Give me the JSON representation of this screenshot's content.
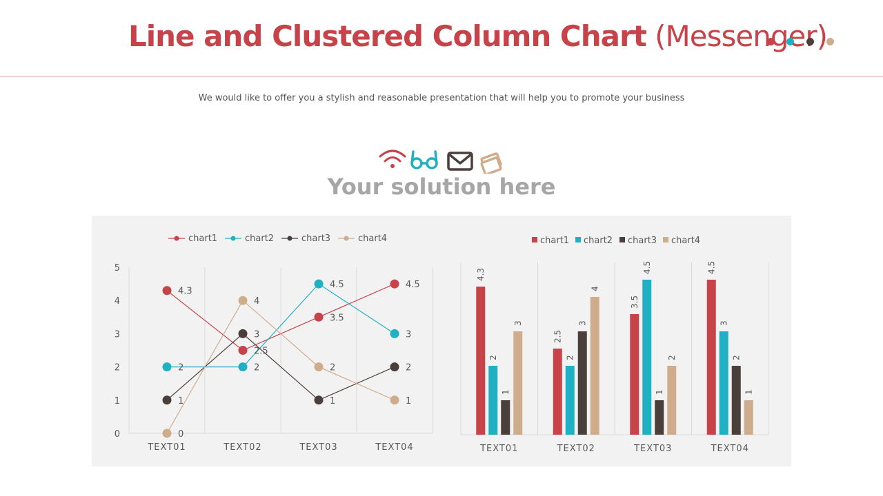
{
  "header": {
    "title_bold": "Line and Clustered Column Chart",
    "title_light": "(Messenger)",
    "dot_colors": [
      "#c8424a",
      "#1fb0c4",
      "#4a3f3a",
      "#cfac8c"
    ]
  },
  "subtitle": "We would like to offer you a stylish and reasonable presentation that will help you to promote your business",
  "icons": [
    "wifi-icon",
    "glasses-icon",
    "mail-icon",
    "cards-icon"
  ],
  "heading": "Your solution here",
  "colors": {
    "chart1": "#c8424a",
    "chart2": "#1fb0c4",
    "chart3": "#4a3f3a",
    "chart4": "#cfac8c"
  },
  "chart_data": [
    {
      "type": "line",
      "categories": [
        "TEXT01",
        "TEXT02",
        "TEXT03",
        "TEXT04"
      ],
      "series": [
        {
          "name": "chart1",
          "values": [
            4.3,
            2.5,
            3.5,
            4.5
          ]
        },
        {
          "name": "chart2",
          "values": [
            2,
            2,
            4.5,
            3
          ]
        },
        {
          "name": "chart3",
          "values": [
            1,
            3,
            1,
            2
          ]
        },
        {
          "name": "chart4",
          "values": [
            0,
            4,
            2,
            1
          ]
        }
      ],
      "yticks": [
        "0",
        "1",
        "2",
        "3",
        "4",
        "5"
      ],
      "ylim": [
        0,
        5
      ],
      "legend": "top",
      "grid": "vertical"
    },
    {
      "type": "bar",
      "categories": [
        "TEXT01",
        "TEXT02",
        "TEXT03",
        "TEXT04"
      ],
      "series": [
        {
          "name": "chart1",
          "values": [
            4.3,
            2.5,
            3.5,
            4.5
          ]
        },
        {
          "name": "chart2",
          "values": [
            2,
            2,
            4.5,
            3
          ]
        },
        {
          "name": "chart3",
          "values": [
            1,
            3,
            1,
            2
          ]
        },
        {
          "name": "chart4",
          "values": [
            3,
            4,
            2,
            1
          ]
        }
      ],
      "ylim": [
        0,
        5
      ],
      "legend": "top",
      "grid": "vertical"
    }
  ]
}
